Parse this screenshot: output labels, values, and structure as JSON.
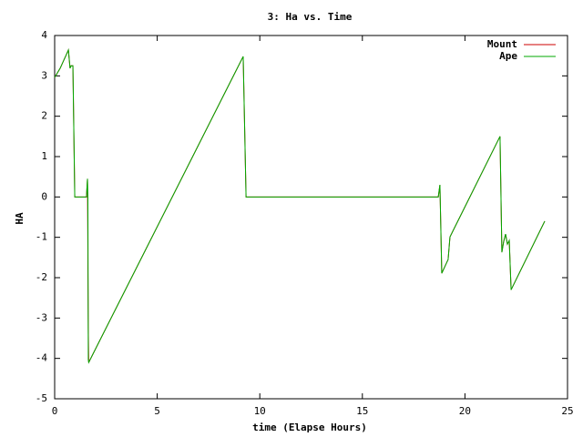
{
  "chart_data": {
    "type": "line",
    "title": "3: Ha vs. Time",
    "x_label": "time (Elapse Hours)",
    "y_label": "HA",
    "xlim": [
      0,
      25
    ],
    "xticks": [
      0,
      5,
      10,
      15,
      20,
      25
    ],
    "ylim": [
      -5,
      4
    ],
    "yticks": [
      -5,
      -4,
      -3,
      -2,
      -1,
      0,
      1,
      2,
      3,
      4
    ],
    "grid": false,
    "legend": "top-right",
    "series": [
      {
        "name": "Mount",
        "color": "#cc0000",
        "x": [
          0,
          0.27,
          0.67,
          0.75,
          0.8,
          0.89,
          0.98,
          1.55,
          1.6,
          1.62,
          1.62,
          1.64,
          1.66,
          9.19,
          9.33,
          18.7,
          18.78,
          18.87,
          19.18,
          19.27,
          21.71,
          21.8,
          21.89,
          21.98,
          22.07,
          22.16,
          22.25,
          23.89
        ],
        "values": [
          2.96,
          3.19,
          3.64,
          3.19,
          3.25,
          3.25,
          0,
          0,
          0.45,
          -1.26,
          -1.8,
          -3.29,
          -4.1,
          3.48,
          0,
          0,
          0.3,
          -1.89,
          -1.55,
          -0.99,
          1.5,
          -1.37,
          -1.1,
          -0.92,
          -1.17,
          -1.08,
          -2.3,
          -0.6
        ]
      },
      {
        "name": "Ape",
        "color": "#00aa00",
        "x": [
          0,
          0.27,
          0.67,
          0.75,
          0.8,
          0.89,
          0.98,
          1.55,
          1.6,
          1.62,
          1.64,
          1.66,
          9.19,
          9.33,
          18.7,
          18.78,
          18.87,
          19.18,
          19.27,
          21.71,
          21.8,
          21.89,
          21.98,
          22.07,
          22.16,
          22.25,
          23.89
        ],
        "values": [
          2.96,
          3.19,
          3.64,
          3.19,
          3.25,
          3.25,
          0,
          0,
          0.45,
          0,
          -4.03,
          -4.1,
          3.48,
          0,
          0,
          0.3,
          -1.89,
          -1.55,
          -0.99,
          1.5,
          -1.37,
          -1.1,
          -0.92,
          -1.17,
          -1.08,
          -2.3,
          -0.6
        ]
      }
    ]
  }
}
